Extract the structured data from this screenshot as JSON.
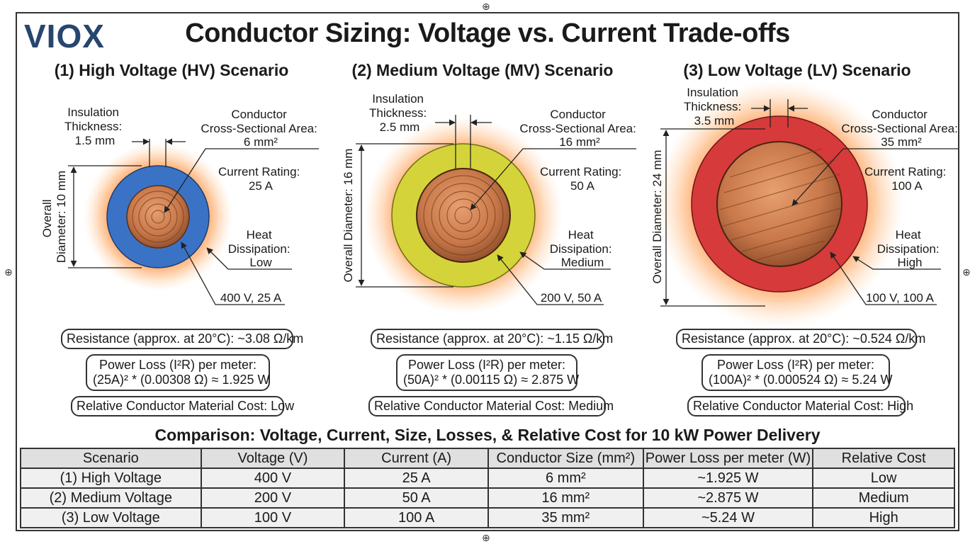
{
  "brand": "VIOX",
  "title": "Conductor Sizing: Voltage vs. Current Trade-offs",
  "colors": {
    "hv_insulation": "#3a73c6",
    "mv_insulation": "#d4d43a",
    "lv_insulation": "#d63a3a",
    "copper": "#c8784a",
    "glow": "#ff8a3a"
  },
  "scenarios": [
    {
      "title": "(1) High Voltage (HV) Scenario",
      "insulation_label": [
        "Insulation",
        "Thickness:",
        "1.5 mm"
      ],
      "diameter_label": [
        "Overall",
        "Diameter: 10 mm"
      ],
      "area_label": [
        "Conductor",
        "Cross-Sectional Area:",
        "6 mm²"
      ],
      "current_label": [
        "Current Rating:",
        "25 A"
      ],
      "heat_label": [
        "Heat",
        "Dissipation:",
        "Low"
      ],
      "operating_point": "400 V, 25 A",
      "resistance": "Resistance (approx. at 20°C): ~3.08 Ω/km",
      "power_loss_line1": "Power Loss (I²R) per meter:",
      "power_loss_line2": "(25A)² * (0.00308 Ω) ≈ 1.925 W",
      "cost": "Relative Conductor Material Cost: Low"
    },
    {
      "title": "(2) Medium Voltage (MV) Scenario",
      "insulation_label": [
        "Insulation",
        "Thickness:",
        "2.5 mm"
      ],
      "diameter_label": [
        "Overall Diameter: 16 mm"
      ],
      "area_label": [
        "Conductor",
        "Cross-Sectional Area:",
        "16 mm²"
      ],
      "current_label": [
        "Current Rating:",
        "50 A"
      ],
      "heat_label": [
        "Heat",
        "Dissipation:",
        "Medium"
      ],
      "operating_point": "200 V, 50 A",
      "resistance": "Resistance (approx. at 20°C): ~1.15 Ω/km",
      "power_loss_line1": "Power Loss (I²R) per meter:",
      "power_loss_line2": "(50A)² * (0.00115 Ω) ≈ 2.875 W",
      "cost": "Relative Conductor Material Cost: Medium"
    },
    {
      "title": "(3) Low Voltage (LV) Scenario",
      "insulation_label": [
        "Insulation",
        "Thickness:",
        "3.5 mm"
      ],
      "diameter_label": [
        "Overall Diameter: 24 mm"
      ],
      "area_label": [
        "Conductor",
        "Cross-Sectional Area:",
        "35 mm²"
      ],
      "current_label": [
        "Current Rating:",
        "100 A"
      ],
      "heat_label": [
        "Heat",
        "Dissipation:",
        "High"
      ],
      "operating_point": "100 V, 100 A",
      "resistance": "Resistance (approx. at 20°C): ~0.524 Ω/km",
      "power_loss_line1": "Power Loss (I²R) per meter:",
      "power_loss_line2": "(100A)² * (0.000524 Ω) ≈ 5.24 W",
      "cost": "Relative Conductor Material Cost: High"
    }
  ],
  "comparison": {
    "title": "Comparison: Voltage, Current, Size, Losses, & Relative Cost for 10 kW Power Delivery",
    "headers": [
      "Scenario",
      "Voltage (V)",
      "Current (A)",
      "Conductor Size (mm²)",
      "Power Loss per meter (W)",
      "Relative Cost"
    ],
    "rows": [
      [
        "(1) High Voltage",
        "400 V",
        "25 A",
        "6 mm²",
        "~1.925 W",
        "Low"
      ],
      [
        "(2) Medium Voltage",
        "200 V",
        "50 A",
        "16 mm²",
        "~2.875 W",
        "Medium"
      ],
      [
        "(3) Low Voltage",
        "100 V",
        "100 A",
        "35 mm²",
        "~5.24 W",
        "High"
      ]
    ]
  }
}
